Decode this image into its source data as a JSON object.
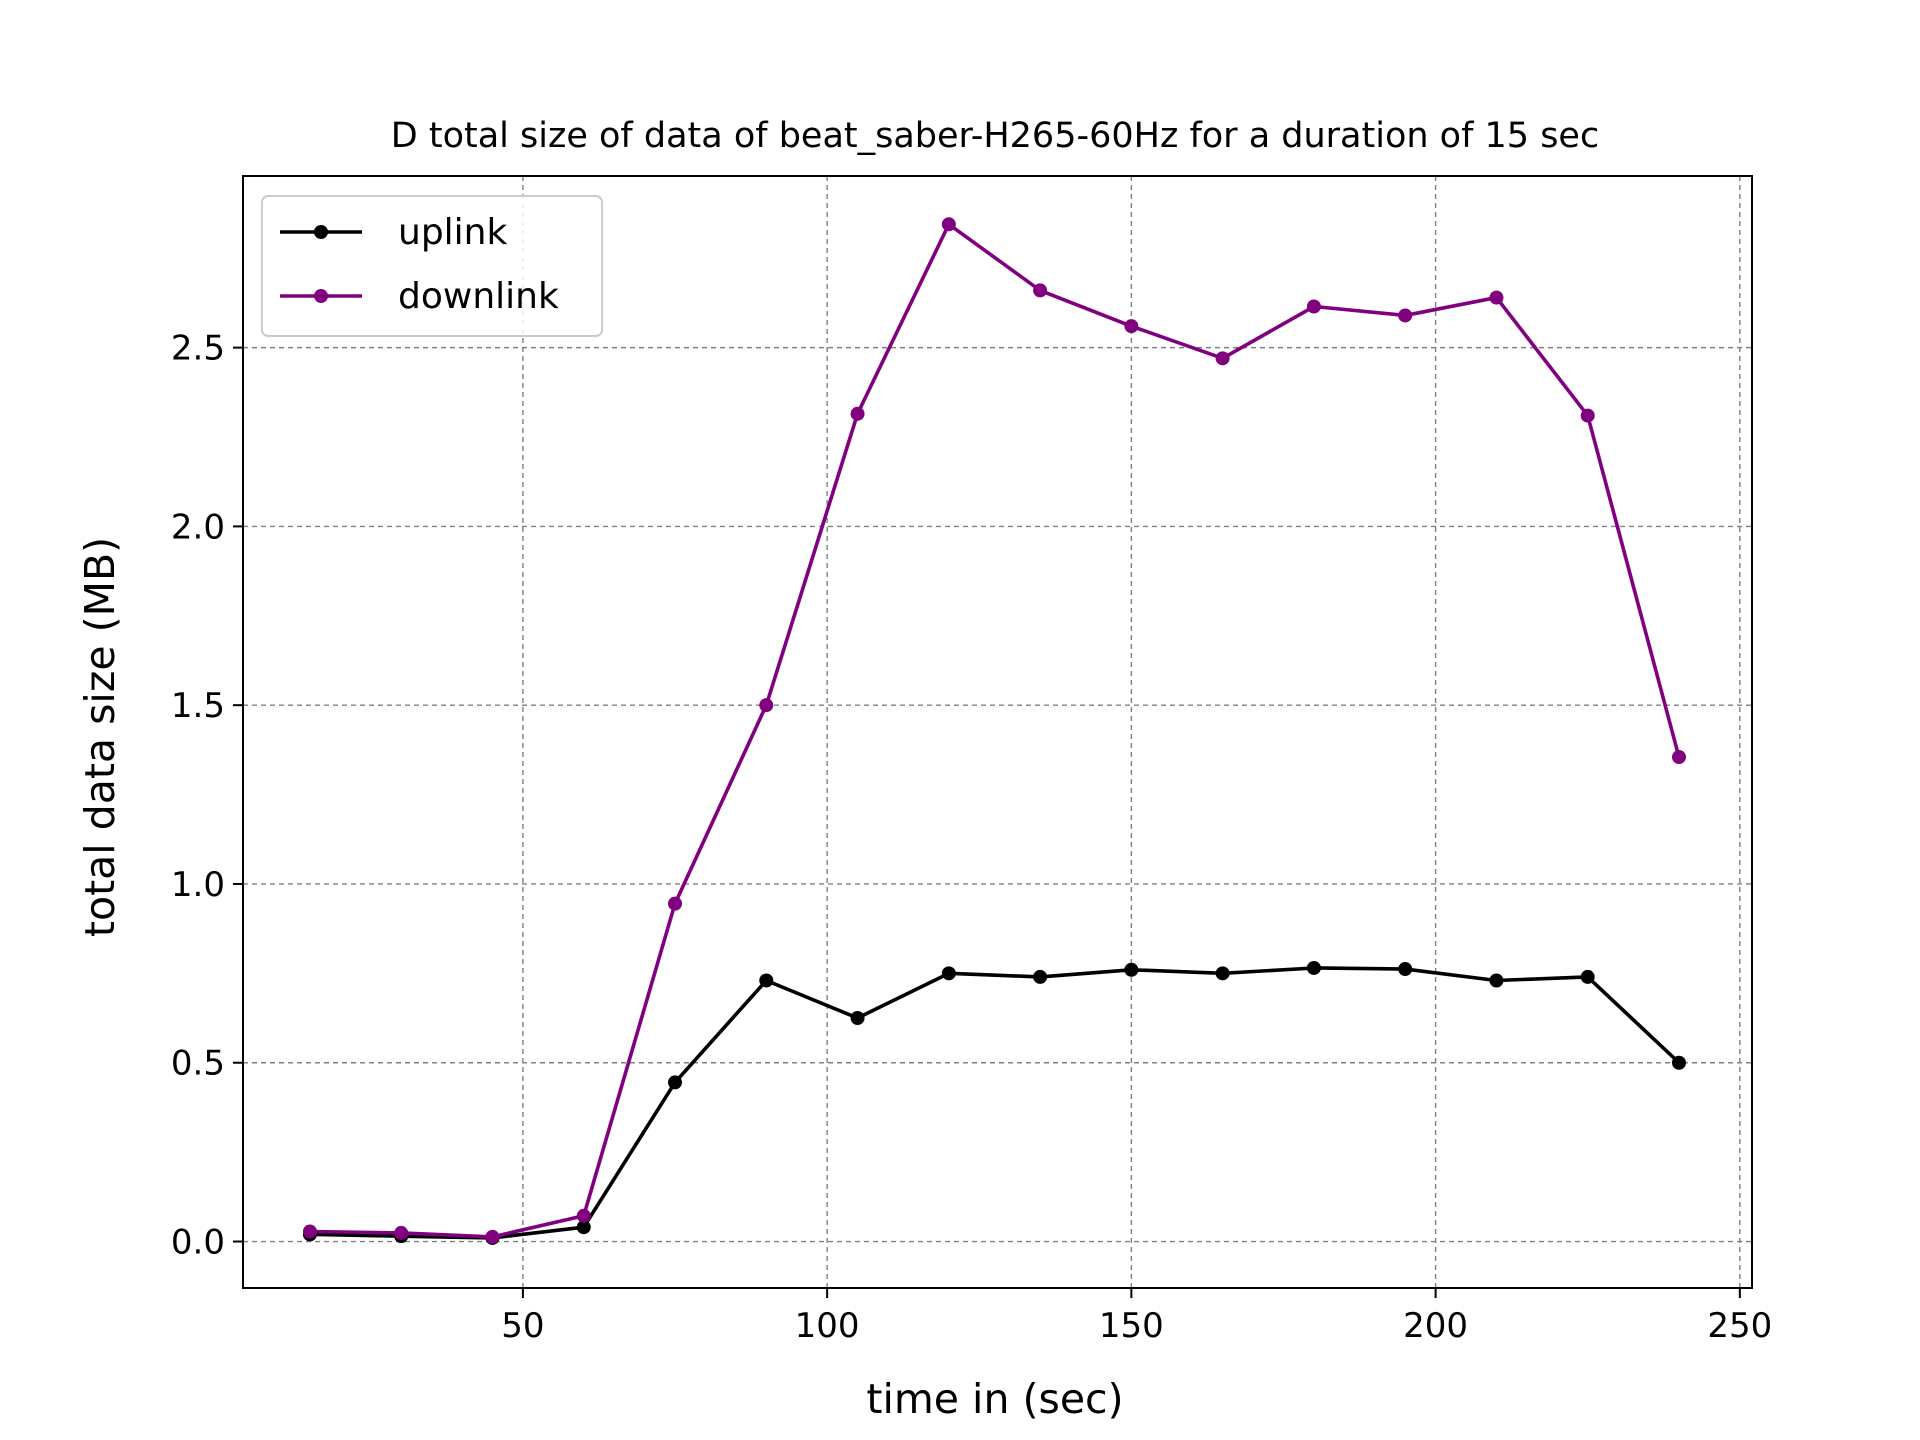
{
  "chart_data": {
    "type": "line",
    "title": "D total size of data of beat_saber-H265-60Hz for a duration of 15 sec",
    "xlabel": "time in (sec)",
    "ylabel": "total data size (MB)",
    "xlim": [
      4,
      252
    ],
    "ylim": [
      -0.13,
      2.98
    ],
    "xticks": [
      50,
      100,
      150,
      200,
      250
    ],
    "xtick_labels": [
      "50",
      "100",
      "150",
      "200",
      "250"
    ],
    "yticks": [
      0.0,
      0.5,
      1.0,
      1.5,
      2.0,
      2.5
    ],
    "ytick_labels": [
      "0.0",
      "0.5",
      "1.0",
      "1.5",
      "2.0",
      "2.5"
    ],
    "grid": true,
    "legend_position": "top-left",
    "x": [
      15,
      30,
      45,
      60,
      75,
      90,
      105,
      120,
      135,
      150,
      165,
      180,
      195,
      210,
      225,
      240
    ],
    "series": [
      {
        "name": "uplink",
        "color": "#000000",
        "values": [
          0.02,
          0.015,
          0.01,
          0.04,
          0.445,
          0.73,
          0.625,
          0.75,
          0.74,
          0.76,
          0.75,
          0.765,
          0.762,
          0.73,
          0.74,
          0.5
        ]
      },
      {
        "name": "downlink",
        "color": "#800080",
        "values": [
          0.028,
          0.024,
          0.013,
          0.072,
          0.945,
          1.5,
          2.315,
          2.845,
          2.66,
          2.56,
          2.47,
          2.615,
          2.59,
          2.64,
          2.31,
          1.355
        ]
      }
    ]
  }
}
